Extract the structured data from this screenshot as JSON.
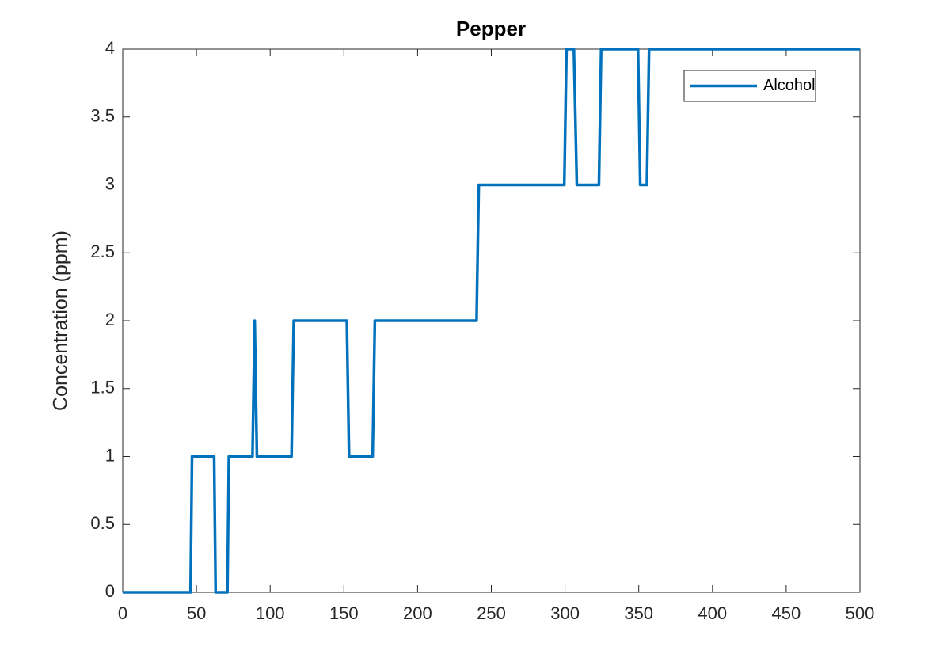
{
  "chart_data": {
    "type": "line",
    "title": "Pepper",
    "ylabel": "Concentration (ppm)",
    "x": [
      0,
      46,
      47,
      62,
      63,
      71,
      72,
      88,
      89.5,
      91,
      92,
      114.5,
      116,
      152,
      153.5,
      169.5,
      171,
      240,
      241.5,
      299.5,
      301,
      306,
      308,
      323,
      324.5,
      349.5,
      351,
      355.5,
      357,
      500
    ],
    "series": [
      {
        "name": "Alcohol",
        "color": "#0072bd",
        "values": [
          0,
          0,
          1,
          1,
          0,
          0,
          1,
          1,
          2,
          1,
          1,
          1,
          2,
          2,
          1,
          1,
          2,
          2,
          3,
          3,
          4,
          4,
          3,
          3,
          4,
          4,
          3,
          3,
          4,
          4
        ]
      }
    ],
    "xlim": [
      0,
      500
    ],
    "xticks": [
      0,
      50,
      100,
      150,
      200,
      250,
      300,
      350,
      400,
      450,
      500
    ],
    "ylim": [
      0,
      4
    ],
    "yticks": [
      0,
      0.5,
      1,
      1.5,
      2,
      2.5,
      3,
      3.5,
      4
    ],
    "grid": false,
    "legend": "northeast"
  }
}
